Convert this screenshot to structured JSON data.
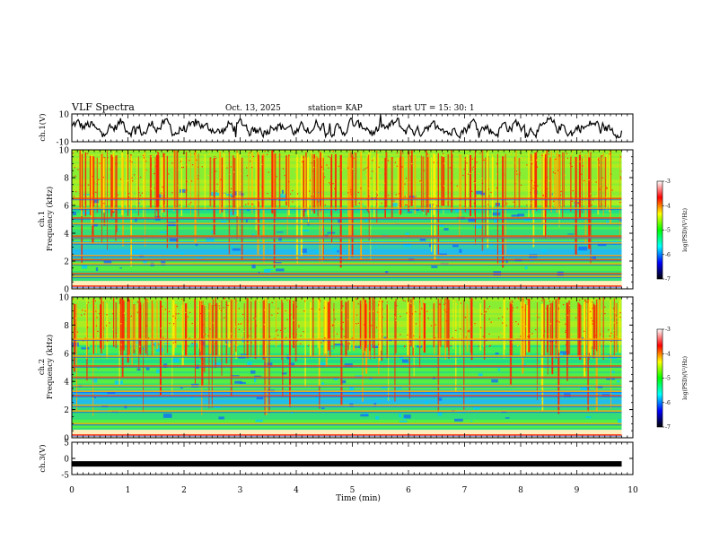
{
  "header": {
    "title": "VLF Spectra",
    "date": "Oct. 13, 2025",
    "station": "station= KAP",
    "start": "start  UT =   15: 30: 1"
  },
  "colorbar": {
    "label": "log(PSD)(V²/Hz)",
    "ticks": [
      "-3",
      "-4",
      "-5",
      "-6",
      "-7"
    ],
    "colors": [
      "#ffffff",
      "#ff0000",
      "#ffff00",
      "#00ff00",
      "#00ffff",
      "#0000ff",
      "#000000"
    ]
  },
  "chart_data": [
    {
      "type": "line",
      "title": "",
      "ylabel": "ch.1(V)",
      "xlabel": "",
      "xlim": [
        0,
        10
      ],
      "ylim": [
        -10,
        10
      ],
      "y_ticks": [
        "10",
        "-10"
      ],
      "x_end": 9.8,
      "description_series": "noisy waveform oscillating roughly between -7 and +7 V"
    },
    {
      "type": "heatmap",
      "ylabel": "ch.1\nFrequency (kHz)",
      "ylabel_parts": [
        "ch.1",
        "Frequency (kHz)"
      ],
      "xlim": [
        0,
        10
      ],
      "ylim": [
        0,
        10
      ],
      "y_ticks": [
        "0",
        "2",
        "4",
        "6",
        "8",
        "10"
      ],
      "x_end": 9.8,
      "zlim": [
        -7,
        -3
      ],
      "bands_khz": [
        0.2,
        0.9,
        1.1,
        1.8,
        2.1,
        2.4,
        3.3,
        3.7,
        3.8,
        4.7,
        5.1,
        5.8,
        6.5
      ],
      "high_activity_khz": [
        6.0,
        10.0
      ]
    },
    {
      "type": "heatmap",
      "ylabel": "ch.2\nFrequency (kHz)",
      "ylabel_parts": [
        "ch.2",
        "Frequency (kHz)"
      ],
      "xlim": [
        0,
        10
      ],
      "ylim": [
        0,
        10
      ],
      "y_ticks": [
        "0",
        "2",
        "4",
        "6",
        "8",
        "10"
      ],
      "x_end": 9.8,
      "zlim": [
        -7,
        -3
      ],
      "bands_khz": [
        0.2,
        1.0,
        1.9,
        2.3,
        3.0,
        3.3,
        3.7,
        4.3,
        5.1,
        5.8,
        7.0
      ],
      "high_activity_khz": [
        6.5,
        10.0
      ]
    },
    {
      "type": "line",
      "ylabel": "ch.3(V)",
      "xlabel": "Time (min)",
      "xlim": [
        0,
        10
      ],
      "ylim": [
        -5,
        5
      ],
      "y_ticks": [
        "5",
        "0",
        "-5"
      ],
      "x_ticks": [
        "0",
        "1",
        "2",
        "3",
        "4",
        "5",
        "6",
        "7",
        "8",
        "9",
        "10"
      ],
      "x_end": 9.8,
      "level": -1.7,
      "description_series": "thick flat trace near -1.7 V"
    }
  ]
}
